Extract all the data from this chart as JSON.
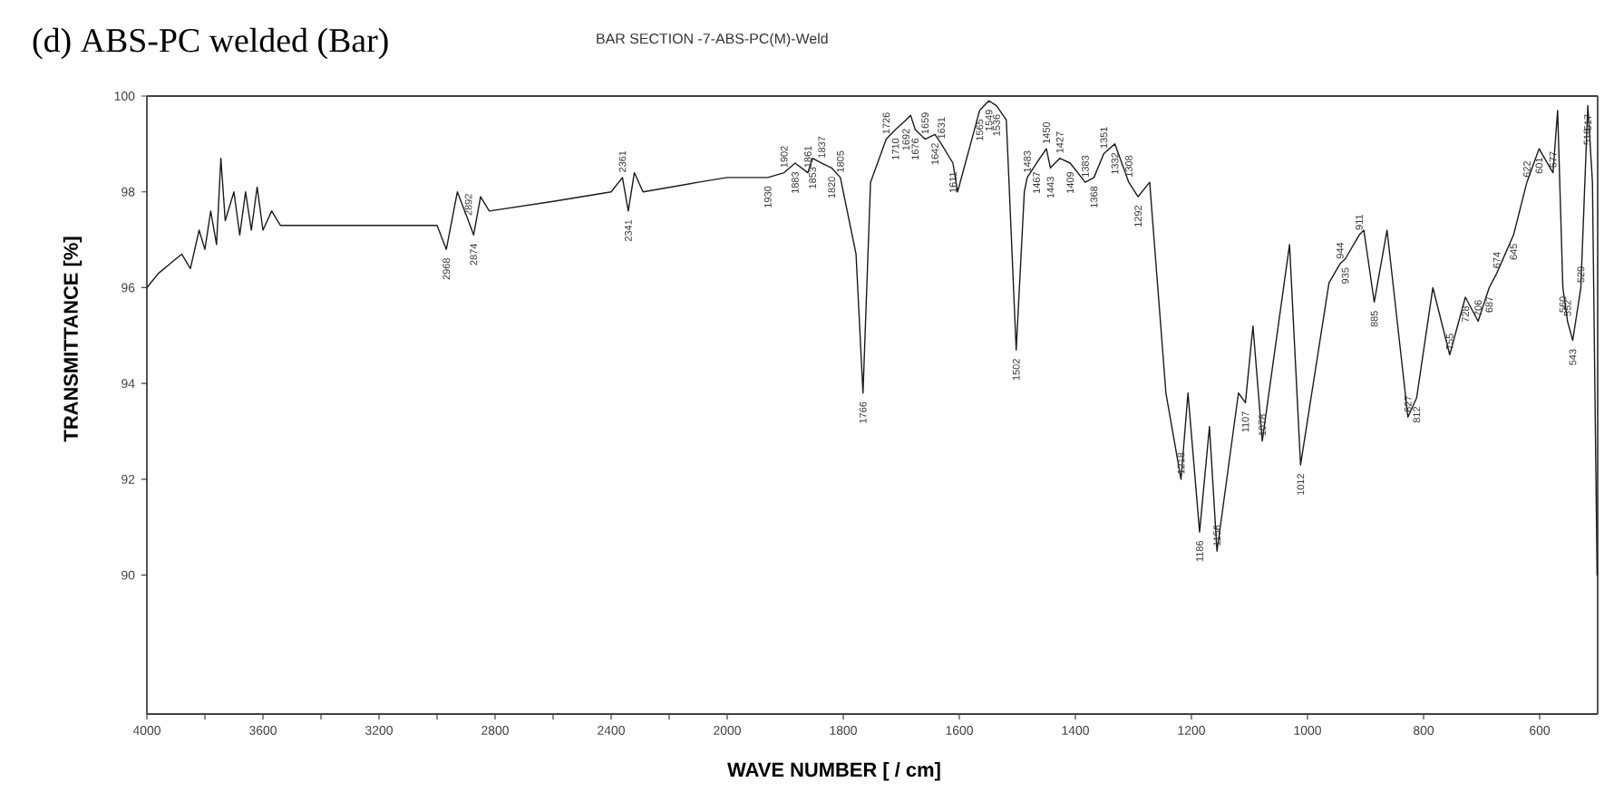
{
  "chart_data": [
    {
      "type": "line",
      "title": "(d) ABS-PC welded (Bar)",
      "subtitle": "BAR SECTION -7-ABS-PC(M)-Weld",
      "ylabel": "TRANSMITTANCE   [%]",
      "xlim": [
        4000,
        2000
      ],
      "ylim": [
        87.1,
        100
      ],
      "xticks": [
        4000,
        {
          "value": 3800,
          "label": null
        },
        3600,
        {
          "value": 3400,
          "label": null
        },
        3200,
        {
          "value": 3000,
          "label": null
        },
        2800,
        {
          "value": 2600,
          "label": null
        },
        2400,
        {
          "value": 2200,
          "label": null
        }
      ],
      "yticks": [
        90,
        92,
        94,
        96,
        98,
        100
      ],
      "grid": false,
      "series": [
        {
          "color": "#1a1a1a",
          "x": [
            4000,
            3960,
            3920,
            3880,
            3850,
            3820,
            3800,
            3780,
            3760,
            3745,
            3730,
            3700,
            3680,
            3660,
            3640,
            3620,
            3600,
            3570,
            3540,
            3400,
            3100,
            3000,
            2968,
            2930,
            2892,
            2874,
            2850,
            2820,
            2600,
            2400,
            2361,
            2341,
            2320,
            2290,
            2100,
            2000
          ],
          "values": [
            96.0,
            96.3,
            96.5,
            96.7,
            96.4,
            97.2,
            96.8,
            97.6,
            96.9,
            98.7,
            97.4,
            98.0,
            97.1,
            98.0,
            97.2,
            98.1,
            97.2,
            97.6,
            97.3,
            97.3,
            97.3,
            97.3,
            96.8,
            98.0,
            97.4,
            97.1,
            97.9,
            97.6,
            97.8,
            98.0,
            98.3,
            97.6,
            98.4,
            98.0,
            98.2,
            98.3
          ]
        }
      ],
      "annotations": [
        {
          "text": "2968",
          "x": 2968,
          "y": 96.8
        },
        {
          "text": "2892",
          "x": 2892,
          "y": 97.4
        },
        {
          "text": "2874",
          "x": 2874,
          "y": 97.1
        },
        {
          "text": "2361",
          "x": 2361,
          "y": 98.3
        },
        {
          "text": "2341",
          "x": 2341,
          "y": 97.6
        }
      ]
    },
    {
      "type": "line",
      "xlabel": "WAVE NUMBER   [ / cm]",
      "xlim": [
        2000,
        500
      ],
      "ylim": [
        87.1,
        100
      ],
      "xticks": [
        2000,
        1800,
        1600,
        1400,
        1200,
        1000,
        800,
        600
      ],
      "yticks": [
        90,
        92,
        94,
        96,
        98,
        100
      ],
      "tick_labels": "x",
      "grid": false,
      "series": [
        {
          "color": "#1a1a1a",
          "x": [
            2000,
            1930,
            1902,
            1883,
            1861,
            1853,
            1837,
            1820,
            1805,
            1778,
            1766,
            1753,
            1726,
            1710,
            1692,
            1684,
            1676,
            1659,
            1642,
            1631,
            1611,
            1603,
            1565,
            1549,
            1536,
            1519,
            1502,
            1488,
            1483,
            1467,
            1450,
            1443,
            1427,
            1409,
            1383,
            1368,
            1351,
            1332,
            1308,
            1292,
            1272,
            1244,
            1218,
            1206,
            1186,
            1169,
            1156,
            1119,
            1107,
            1094,
            1078,
            1031,
            1012,
            963,
            944,
            935,
            911,
            903,
            885,
            863,
            827,
            812,
            784,
            755,
            728,
            706,
            687,
            674,
            645,
            622,
            601,
            577,
            569,
            560,
            552,
            543,
            529,
            518,
            517,
            509,
            501
          ],
          "values": [
            98.3,
            98.3,
            98.4,
            98.6,
            98.4,
            98.7,
            98.6,
            98.5,
            98.3,
            96.7,
            93.8,
            98.2,
            99.1,
            99.3,
            99.5,
            99.6,
            99.3,
            99.1,
            99.2,
            99.0,
            98.6,
            98.0,
            99.7,
            99.9,
            99.8,
            99.5,
            94.7,
            98.0,
            98.3,
            98.6,
            98.9,
            98.5,
            98.7,
            98.6,
            98.2,
            98.3,
            98.8,
            99.0,
            98.2,
            97.9,
            98.2,
            93.8,
            92.0,
            93.8,
            90.9,
            93.1,
            90.5,
            93.8,
            93.6,
            95.2,
            92.8,
            96.9,
            92.3,
            96.1,
            96.5,
            96.6,
            97.1,
            97.2,
            95.7,
            97.2,
            93.3,
            93.7,
            96.0,
            94.6,
            95.8,
            95.3,
            96.0,
            96.3,
            97.1,
            98.2,
            98.9,
            98.4,
            99.7,
            96.0,
            95.3,
            94.9,
            96.0,
            99.5,
            99.8,
            98.2,
            90.0
          ]
        }
      ],
      "annotations": [
        {
          "text": "1930",
          "x": 1930,
          "y": 98.3
        },
        {
          "text": "1902",
          "x": 1902,
          "y": 98.4
        },
        {
          "text": "1883",
          "x": 1883,
          "y": 98.6
        },
        {
          "text": "1861",
          "x": 1861,
          "y": 98.4
        },
        {
          "text": "1853",
          "x": 1853,
          "y": 98.7
        },
        {
          "text": "1837",
          "x": 1837,
          "y": 98.6
        },
        {
          "text": "1820",
          "x": 1820,
          "y": 98.5
        },
        {
          "text": "1805",
          "x": 1805,
          "y": 98.3
        },
        {
          "text": "1766",
          "x": 1766,
          "y": 93.8
        },
        {
          "text": "1726",
          "x": 1726,
          "y": 99.1
        },
        {
          "text": "1710",
          "x": 1710,
          "y": 99.3
        },
        {
          "text": "1692",
          "x": 1692,
          "y": 99.5
        },
        {
          "text": "1676",
          "x": 1676,
          "y": 99.3
        },
        {
          "text": "1659",
          "x": 1659,
          "y": 99.1
        },
        {
          "text": "1642",
          "x": 1642,
          "y": 99.2
        },
        {
          "text": "1631",
          "x": 1631,
          "y": 99.0
        },
        {
          "text": "1611",
          "x": 1611,
          "y": 98.6
        },
        {
          "text": "1565",
          "x": 1565,
          "y": 99.7
        },
        {
          "text": "1549",
          "x": 1549,
          "y": 99.9
        },
        {
          "text": "1536",
          "x": 1536,
          "y": 99.8
        },
        {
          "text": "1502",
          "x": 1502,
          "y": 94.7
        },
        {
          "text": "1483",
          "x": 1483,
          "y": 98.3
        },
        {
          "text": "1467",
          "x": 1467,
          "y": 98.6
        },
        {
          "text": "1450",
          "x": 1450,
          "y": 98.9
        },
        {
          "text": "1443",
          "x": 1443,
          "y": 98.5
        },
        {
          "text": "1427",
          "x": 1427,
          "y": 98.7
        },
        {
          "text": "1409",
          "x": 1409,
          "y": 98.6
        },
        {
          "text": "1383",
          "x": 1383,
          "y": 98.2
        },
        {
          "text": "1368",
          "x": 1368,
          "y": 98.3
        },
        {
          "text": "1351",
          "x": 1351,
          "y": 98.8
        },
        {
          "text": "1332",
          "x": 1332,
          "y": 99.0
        },
        {
          "text": "1308",
          "x": 1308,
          "y": 98.2
        },
        {
          "text": "1292",
          "x": 1292,
          "y": 97.9
        },
        {
          "text": "1218",
          "x": 1218,
          "y": 92.0
        },
        {
          "text": "1186",
          "x": 1186,
          "y": 90.9
        },
        {
          "text": "1156",
          "x": 1156,
          "y": 90.5
        },
        {
          "text": "1107",
          "x": 1107,
          "y": 93.6
        },
        {
          "text": "1078",
          "x": 1078,
          "y": 92.8
        },
        {
          "text": "1012",
          "x": 1012,
          "y": 92.3
        },
        {
          "text": "944",
          "x": 944,
          "y": 96.5
        },
        {
          "text": "935",
          "x": 935,
          "y": 96.6
        },
        {
          "text": "911",
          "x": 911,
          "y": 97.1
        },
        {
          "text": "885",
          "x": 885,
          "y": 95.7
        },
        {
          "text": "827",
          "x": 827,
          "y": 93.3
        },
        {
          "text": "812",
          "x": 812,
          "y": 93.7
        },
        {
          "text": "755",
          "x": 755,
          "y": 94.6
        },
        {
          "text": "728",
          "x": 728,
          "y": 95.8
        },
        {
          "text": "706",
          "x": 706,
          "y": 95.3
        },
        {
          "text": "687",
          "x": 687,
          "y": 96.0
        },
        {
          "text": "674",
          "x": 674,
          "y": 96.3
        },
        {
          "text": "645",
          "x": 645,
          "y": 97.1
        },
        {
          "text": "622",
          "x": 622,
          "y": 98.2
        },
        {
          "text": "601",
          "x": 601,
          "y": 98.9
        },
        {
          "text": "577",
          "x": 577,
          "y": 98.4
        },
        {
          "text": "560",
          "x": 560,
          "y": 96.0
        },
        {
          "text": "552",
          "x": 552,
          "y": 95.3
        },
        {
          "text": "543",
          "x": 543,
          "y": 94.9
        },
        {
          "text": "529",
          "x": 529,
          "y": 96.0
        },
        {
          "text": "518",
          "x": 518,
          "y": 99.5
        },
        {
          "text": "517",
          "x": 517,
          "y": 99.8
        }
      ]
    }
  ]
}
